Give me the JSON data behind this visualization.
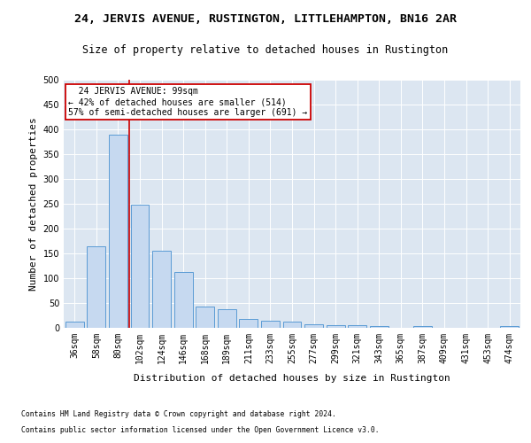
{
  "title": "24, JERVIS AVENUE, RUSTINGTON, LITTLEHAMPTON, BN16 2AR",
  "subtitle": "Size of property relative to detached houses in Rustington",
  "xlabel": "Distribution of detached houses by size in Rustington",
  "ylabel": "Number of detached properties",
  "footer1": "Contains HM Land Registry data © Crown copyright and database right 2024.",
  "footer2": "Contains public sector information licensed under the Open Government Licence v3.0.",
  "categories": [
    "36sqm",
    "58sqm",
    "80sqm",
    "102sqm",
    "124sqm",
    "146sqm",
    "168sqm",
    "189sqm",
    "211sqm",
    "233sqm",
    "255sqm",
    "277sqm",
    "299sqm",
    "321sqm",
    "343sqm",
    "365sqm",
    "387sqm",
    "409sqm",
    "431sqm",
    "453sqm",
    "474sqm"
  ],
  "values": [
    12,
    165,
    390,
    248,
    155,
    113,
    42,
    38,
    17,
    14,
    13,
    8,
    6,
    5,
    3,
    0,
    3,
    0,
    0,
    0,
    4
  ],
  "bar_color": "#c6d9f0",
  "bar_edge_color": "#5b9bd5",
  "red_line_x": 2.5,
  "annotation_text": "  24 JERVIS AVENUE: 99sqm\n← 42% of detached houses are smaller (514)\n57% of semi-detached houses are larger (691) →",
  "annotation_box_color": "#ffffff",
  "annotation_box_edge_color": "#cc0000",
  "ylim": [
    0,
    500
  ],
  "yticks": [
    0,
    50,
    100,
    150,
    200,
    250,
    300,
    350,
    400,
    450,
    500
  ],
  "plot_bg_color": "#dce6f1",
  "title_fontsize": 9.5,
  "subtitle_fontsize": 8.5,
  "tick_fontsize": 7,
  "ylabel_fontsize": 8,
  "xlabel_fontsize": 8,
  "footer_fontsize": 5.8,
  "annotation_fontsize": 7
}
